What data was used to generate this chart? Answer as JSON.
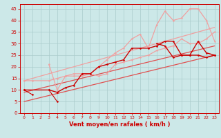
{
  "bg_color": "#cce8e8",
  "grid_color": "#aacccc",
  "xlabel": "Vent moyen/en rafales ( km/h )",
  "ylabel_ticks": [
    0,
    5,
    10,
    15,
    20,
    25,
    30,
    35,
    40,
    45
  ],
  "xlim": [
    -0.5,
    23.5
  ],
  "ylim": [
    0,
    47
  ],
  "lines": [
    {
      "x": [
        0,
        1
      ],
      "y": [
        10,
        8
      ],
      "color": "#cc0000",
      "lw": 0.8,
      "marker": "D",
      "ms": 1.5,
      "zorder": 4
    },
    {
      "x": [
        3,
        4
      ],
      "y": [
        10,
        5
      ],
      "color": "#cc0000",
      "lw": 0.8,
      "marker": "D",
      "ms": 1.5,
      "zorder": 4
    },
    {
      "x": [
        0,
        3,
        4,
        5,
        6,
        7,
        8,
        9,
        10,
        11,
        12,
        13,
        14,
        15,
        16,
        17,
        18,
        19,
        20,
        21,
        22,
        23
      ],
      "y": [
        10,
        10,
        9,
        11,
        12,
        17,
        17,
        20,
        21,
        22,
        23,
        28,
        28,
        28,
        29,
        31,
        31,
        25,
        25,
        31,
        26,
        25
      ],
      "color": "#cc0000",
      "lw": 1.0,
      "marker": "D",
      "ms": 1.5,
      "zorder": 4
    },
    {
      "x": [
        16,
        17,
        18,
        19,
        20,
        21,
        22,
        23
      ],
      "y": [
        30,
        29,
        24,
        25,
        25,
        25,
        24,
        25
      ],
      "color": "#cc0000",
      "lw": 1.0,
      "marker": "D",
      "ms": 1.5,
      "zorder": 4
    },
    {
      "x": [
        0,
        23
      ],
      "y": [
        5,
        25
      ],
      "color": "#e05050",
      "lw": 0.9,
      "marker": null,
      "ms": 0,
      "zorder": 2
    },
    {
      "x": [
        0,
        23
      ],
      "y": [
        9,
        29
      ],
      "color": "#e05050",
      "lw": 0.9,
      "marker": null,
      "ms": 0,
      "zorder": 2
    },
    {
      "x": [
        0,
        1,
        3,
        4,
        5,
        6,
        7,
        8,
        9,
        10,
        11,
        12,
        13,
        14,
        15,
        16,
        17,
        18,
        19,
        20,
        21,
        22,
        23
      ],
      "y": [
        14,
        14,
        14,
        15,
        16,
        17,
        17,
        17,
        16,
        17,
        21,
        22,
        23,
        24,
        25,
        27,
        28,
        29,
        32,
        30,
        30,
        32,
        35
      ],
      "color": "#f0a0a0",
      "lw": 0.9,
      "marker": "o",
      "ms": 1.5,
      "zorder": 3
    },
    {
      "x": [
        3,
        4,
        5,
        6,
        7,
        8,
        9,
        10,
        11,
        12,
        13,
        14,
        15,
        16,
        17,
        18,
        19,
        20,
        21,
        22,
        23
      ],
      "y": [
        21,
        10,
        16,
        16,
        16,
        17,
        20,
        23,
        26,
        28,
        32,
        34,
        28,
        38,
        44,
        40,
        41,
        45,
        45,
        40,
        31
      ],
      "color": "#f0a0a0",
      "lw": 0.9,
      "marker": "o",
      "ms": 1.5,
      "zorder": 3
    },
    {
      "x": [
        0,
        23
      ],
      "y": [
        14,
        37
      ],
      "color": "#f0a0a0",
      "lw": 0.9,
      "marker": null,
      "ms": 0,
      "zorder": 2
    }
  ],
  "xtick_fontsize": 4.5,
  "ytick_fontsize": 5.0,
  "xlabel_fontsize": 6.0,
  "tick_color": "#cc0000",
  "axis_color": "#cc0000"
}
